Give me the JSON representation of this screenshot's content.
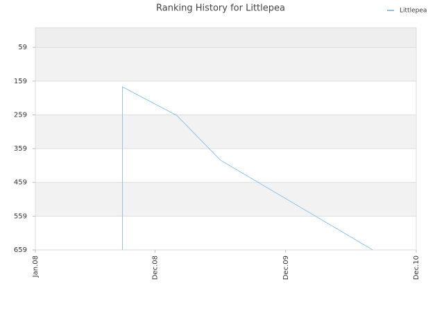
{
  "chart_data": {
    "type": "line",
    "title": "Ranking History for Littlepea",
    "x": [
      "2008-09",
      "2008-09",
      "2009-02",
      "2009-06",
      "2010-08"
    ],
    "series": [
      {
        "name": "Littlepea",
        "color": "#8cc4ef",
        "values": [
          659,
          176,
          261,
          393,
          659
        ]
      }
    ],
    "xlim": [
      "2008-01",
      "2010-12"
    ],
    "xticks": [
      {
        "value": "2008-01",
        "label": "Jan.08"
      },
      {
        "value": "2008-12",
        "label": "Dec.08"
      },
      {
        "value": "2009-12",
        "label": "Dec.09"
      },
      {
        "value": "2010-12",
        "label": "Dec.10"
      }
    ],
    "ylim": [
      659,
      1
    ],
    "yticks": [
      59,
      159,
      259,
      359,
      459,
      559,
      659
    ],
    "grid": true,
    "legend": "top-right"
  }
}
